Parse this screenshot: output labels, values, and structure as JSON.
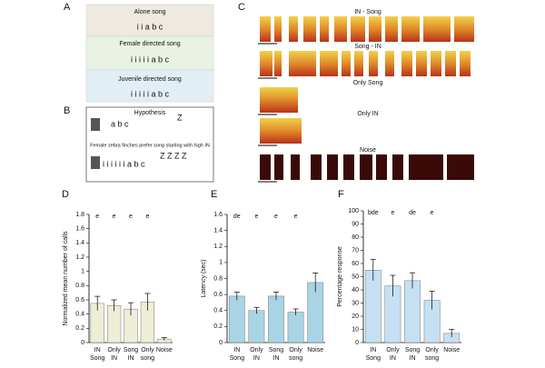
{
  "panels": {
    "letters": [
      "A",
      "B",
      "C",
      "D",
      "E",
      "F"
    ],
    "a": {
      "rows": [
        {
          "title": "Alone song",
          "song": "i i a b c"
        },
        {
          "title": "Female directed song",
          "song": "i i i i i a b c"
        },
        {
          "title": "Juvenile directed song",
          "song": "i i i i i a b c"
        }
      ]
    },
    "b": {
      "title": "Hypothesis",
      "song1": "a b c",
      "z1": "Z",
      "statement": "Female zebra finches prefer song starting with high IN",
      "song2": "i i i i i i a b c",
      "z2": "Z Z Z Z"
    },
    "c": {
      "rows": [
        "IN - Song",
        "Song - IN",
        "Only Song",
        "Only IN",
        "Noise"
      ]
    }
  },
  "chart_data": [
    {
      "type": "bar",
      "ylabel": "Normalized mean number of calls",
      "categories": [
        [
          "IN",
          "Song"
        ],
        [
          "Only",
          "IN"
        ],
        [
          "Song",
          "IN"
        ],
        [
          "Only",
          "song"
        ],
        [
          "Noise"
        ]
      ],
      "values": [
        0.55,
        0.52,
        0.47,
        0.57,
        0.05
      ],
      "errors": [
        0.1,
        0.08,
        0.09,
        0.12,
        0.02
      ],
      "letters": [
        "e",
        "e",
        "e",
        "e",
        null
      ],
      "ylim": [
        0,
        1.8
      ],
      "yticks": [
        0,
        0.2,
        0.4,
        0.6,
        0.8,
        1,
        1.2,
        1.4,
        1.6,
        1.8
      ],
      "color": "#eeeed8"
    },
    {
      "type": "bar",
      "ylabel": "Latency (sec)",
      "categories": [
        [
          "IN",
          "Song"
        ],
        [
          "Only",
          "IN"
        ],
        [
          "Song",
          "IN"
        ],
        [
          "Only",
          "song"
        ],
        [
          "Noise"
        ]
      ],
      "values": [
        0.58,
        0.4,
        0.58,
        0.38,
        0.75
      ],
      "errors": [
        0.05,
        0.04,
        0.05,
        0.04,
        0.12
      ],
      "letters": [
        "de",
        "e",
        "e",
        "e",
        null
      ],
      "ylim": [
        0,
        1.6
      ],
      "yticks": [
        0,
        0.2,
        0.4,
        0.6,
        0.8,
        1,
        1.2,
        1.4,
        1.6
      ],
      "color": "#a9d4e6"
    },
    {
      "type": "bar",
      "ylabel": "Percentage response",
      "categories": [
        [
          "IN",
          "Song"
        ],
        [
          "Only",
          "IN"
        ],
        [
          "Song",
          "IN"
        ],
        [
          "Only",
          "song"
        ],
        [
          "Noise"
        ]
      ],
      "values": [
        55,
        43,
        47,
        32,
        7
      ],
      "errors": [
        8,
        8,
        6,
        7,
        3
      ],
      "letters": [
        "bde",
        "e",
        "de",
        "e",
        null
      ],
      "ylim": [
        0,
        100
      ],
      "yticks": [
        0,
        10,
        20,
        30,
        40,
        50,
        60,
        70,
        80,
        90,
        100
      ],
      "color": "#c5e0f2"
    }
  ]
}
